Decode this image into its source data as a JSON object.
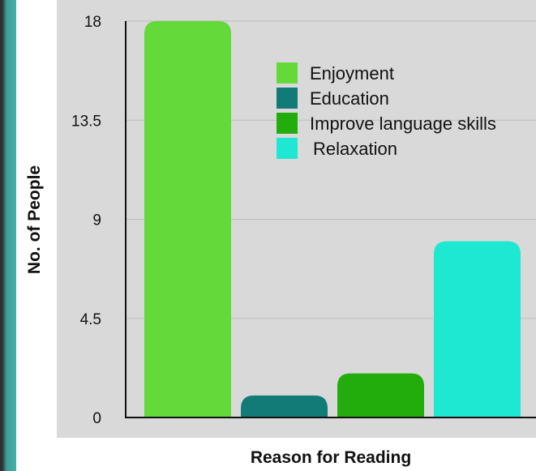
{
  "chart_data": {
    "type": "bar",
    "title": "",
    "xlabel": "Reason for Reading",
    "ylabel": "No. of People",
    "ylim": [
      0,
      18
    ],
    "yticks": [
      "0",
      "4.5",
      "9",
      "13.5",
      "18"
    ],
    "grid": true,
    "legend_position": "top-center",
    "series": [
      {
        "name": "Enjoyment",
        "value": 18,
        "color": "#63d93a"
      },
      {
        "name": "Education",
        "value": 1,
        "color": "#127a77"
      },
      {
        "name": "Improve language skills",
        "value": 2,
        "color": "#22ad0c"
      },
      {
        "name": "Relaxation",
        "value": 8,
        "color": "#1ee8d2"
      }
    ]
  }
}
